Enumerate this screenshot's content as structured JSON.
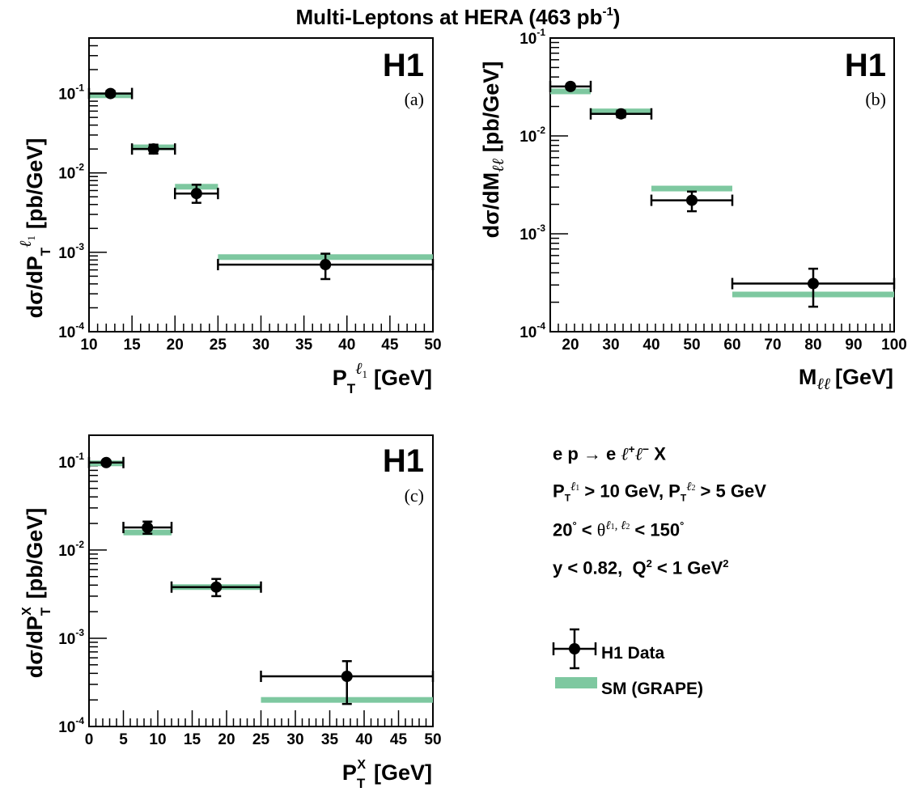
{
  "title": "Multi-Leptons at HERA (463 pb",
  "title_sup": "-1",
  "title_end": ")",
  "experiment_label": "H1",
  "colors": {
    "data": "#000000",
    "sm_band": "#7ec8a0"
  },
  "legend": {
    "data_label": "H1 Data",
    "sm_label": "SM (GRAPE)"
  },
  "selection": {
    "line1": "e p → e ℓ⁺ℓ⁻ X",
    "line2": "P_T^ℓ1 > 10 GeV, P_T^ℓ2 > 5 GeV",
    "line3": "20° < θ^ℓ1,ℓ2 < 150°",
    "line4": "y < 0.82,  Q² < 1 GeV²"
  },
  "chart_data": [
    {
      "type": "scatter",
      "panel_label": "(a)",
      "xlabel": "P_T^ℓ1 [GeV]",
      "ylabel": "dσ/dP_T^ℓ1 [pb/GeV]",
      "xlim": [
        10,
        50
      ],
      "ylim": [
        0.0001,
        0.5
      ],
      "yscale": "log",
      "xticks": [
        10,
        15,
        20,
        25,
        30,
        35,
        40,
        45,
        50
      ],
      "yticks": [
        "10^-4",
        "10^-3",
        "10^-2",
        "10^-1"
      ],
      "series": [
        {
          "name": "H1 Data",
          "points": [
            {
              "x": 12.5,
              "xlo": 10,
              "xhi": 15,
              "y": 0.1,
              "ylo": 0.093,
              "yhi": 0.108
            },
            {
              "x": 17.5,
              "xlo": 15,
              "xhi": 20,
              "y": 0.02,
              "ylo": 0.0175,
              "yhi": 0.0227
            },
            {
              "x": 22.5,
              "xlo": 20,
              "xhi": 25,
              "y": 0.0055,
              "ylo": 0.0042,
              "yhi": 0.0071
            },
            {
              "x": 37.5,
              "xlo": 25,
              "xhi": 50,
              "y": 0.0007,
              "ylo": 0.00046,
              "yhi": 0.00096
            }
          ]
        },
        {
          "name": "SM (GRAPE)",
          "bands": [
            {
              "xlo": 10,
              "xhi": 15,
              "y": 0.095
            },
            {
              "xlo": 15,
              "xhi": 20,
              "y": 0.021
            },
            {
              "xlo": 20,
              "xhi": 25,
              "y": 0.0067
            },
            {
              "xlo": 25,
              "xhi": 50,
              "y": 0.00087
            }
          ]
        }
      ]
    },
    {
      "type": "scatter",
      "panel_label": "(b)",
      "xlabel": "M_ℓℓ [GeV]",
      "ylabel": "dσ/dM_ℓℓ [pb/GeV]",
      "xlim": [
        15,
        100
      ],
      "ylim": [
        0.0001,
        0.1
      ],
      "yscale": "log",
      "xticks": [
        20,
        30,
        40,
        50,
        60,
        70,
        80,
        90,
        100
      ],
      "yticks": [
        "10^-4",
        "10^-3",
        "10^-2",
        "10^-1"
      ],
      "series": [
        {
          "name": "H1 Data",
          "points": [
            {
              "x": 20,
              "xlo": 15,
              "xhi": 25,
              "y": 0.032,
              "ylo": 0.0302,
              "yhi": 0.0338
            },
            {
              "x": 32.5,
              "xlo": 25,
              "xhi": 40,
              "y": 0.0168,
              "ylo": 0.0155,
              "yhi": 0.0181
            },
            {
              "x": 50,
              "xlo": 40,
              "xhi": 60,
              "y": 0.0022,
              "ylo": 0.0017,
              "yhi": 0.0027
            },
            {
              "x": 80,
              "xlo": 60,
              "xhi": 100,
              "y": 0.00031,
              "ylo": 0.00018,
              "yhi": 0.00044
            }
          ]
        },
        {
          "name": "SM (GRAPE)",
          "bands": [
            {
              "xlo": 15,
              "xhi": 25,
              "y": 0.0285
            },
            {
              "xlo": 25,
              "xhi": 40,
              "y": 0.0178
            },
            {
              "xlo": 40,
              "xhi": 60,
              "y": 0.0029
            },
            {
              "xlo": 60,
              "xhi": 100,
              "y": 0.00024
            }
          ]
        }
      ]
    },
    {
      "type": "scatter",
      "panel_label": "(c)",
      "xlabel": "P_T^X [GeV]",
      "ylabel": "dσ/dP_T^X [pb/GeV]",
      "xlim": [
        0,
        50
      ],
      "ylim": [
        0.0001,
        0.2
      ],
      "yscale": "log",
      "xticks": [
        0,
        5,
        10,
        15,
        20,
        25,
        30,
        35,
        40,
        45,
        50
      ],
      "yticks": [
        "10^-4",
        "10^-3",
        "10^-2",
        "10^-1"
      ],
      "series": [
        {
          "name": "H1 Data",
          "points": [
            {
              "x": 2.5,
              "xlo": 0,
              "xhi": 5,
              "y": 0.098,
              "ylo": 0.093,
              "yhi": 0.103
            },
            {
              "x": 8.5,
              "xlo": 5,
              "xhi": 12,
              "y": 0.018,
              "ylo": 0.0153,
              "yhi": 0.021
            },
            {
              "x": 18.5,
              "xlo": 12,
              "xhi": 25,
              "y": 0.0038,
              "ylo": 0.003,
              "yhi": 0.0047
            },
            {
              "x": 37.5,
              "xlo": 25,
              "xhi": 50,
              "y": 0.00037,
              "ylo": 0.00018,
              "yhi": 0.00055
            }
          ]
        },
        {
          "name": "SM (GRAPE)",
          "bands": [
            {
              "xlo": 0,
              "xhi": 5,
              "y": 0.096
            },
            {
              "xlo": 5,
              "xhi": 12,
              "y": 0.0158
            },
            {
              "xlo": 12,
              "xhi": 25,
              "y": 0.0038
            },
            {
              "xlo": 25,
              "xhi": 50,
              "y": 0.0002
            }
          ]
        }
      ]
    }
  ]
}
